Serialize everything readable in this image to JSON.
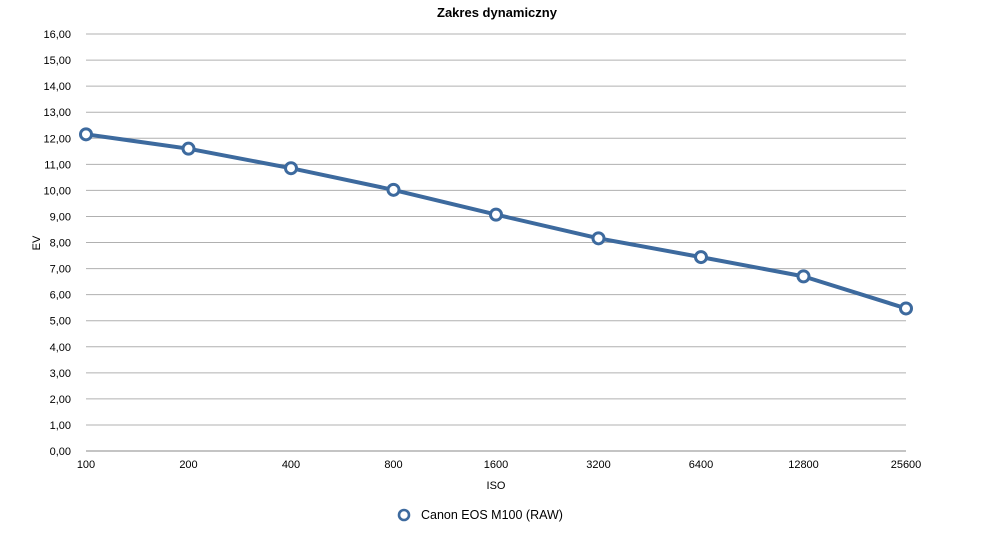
{
  "chart_data": {
    "type": "line",
    "title": "Zakres dynamiczny",
    "xlabel": "ISO",
    "ylabel": "EV",
    "categories": [
      "100",
      "200",
      "400",
      "800",
      "1600",
      "3200",
      "6400",
      "12800",
      "25600"
    ],
    "y_ticks": [
      "0,00",
      "1,00",
      "2,00",
      "3,00",
      "4,00",
      "5,00",
      "6,00",
      "7,00",
      "8,00",
      "9,00",
      "10,00",
      "11,00",
      "12,00",
      "13,00",
      "14,00",
      "15,00",
      "16,00"
    ],
    "ylim": [
      0,
      16
    ],
    "grid": true,
    "legend_position": "bottom",
    "series": [
      {
        "name": "Canon EOS M100 (RAW)",
        "color": "#3d6a9e",
        "values": [
          12.15,
          11.6,
          10.85,
          10.02,
          9.07,
          8.16,
          7.44,
          6.7,
          5.47
        ]
      }
    ]
  }
}
